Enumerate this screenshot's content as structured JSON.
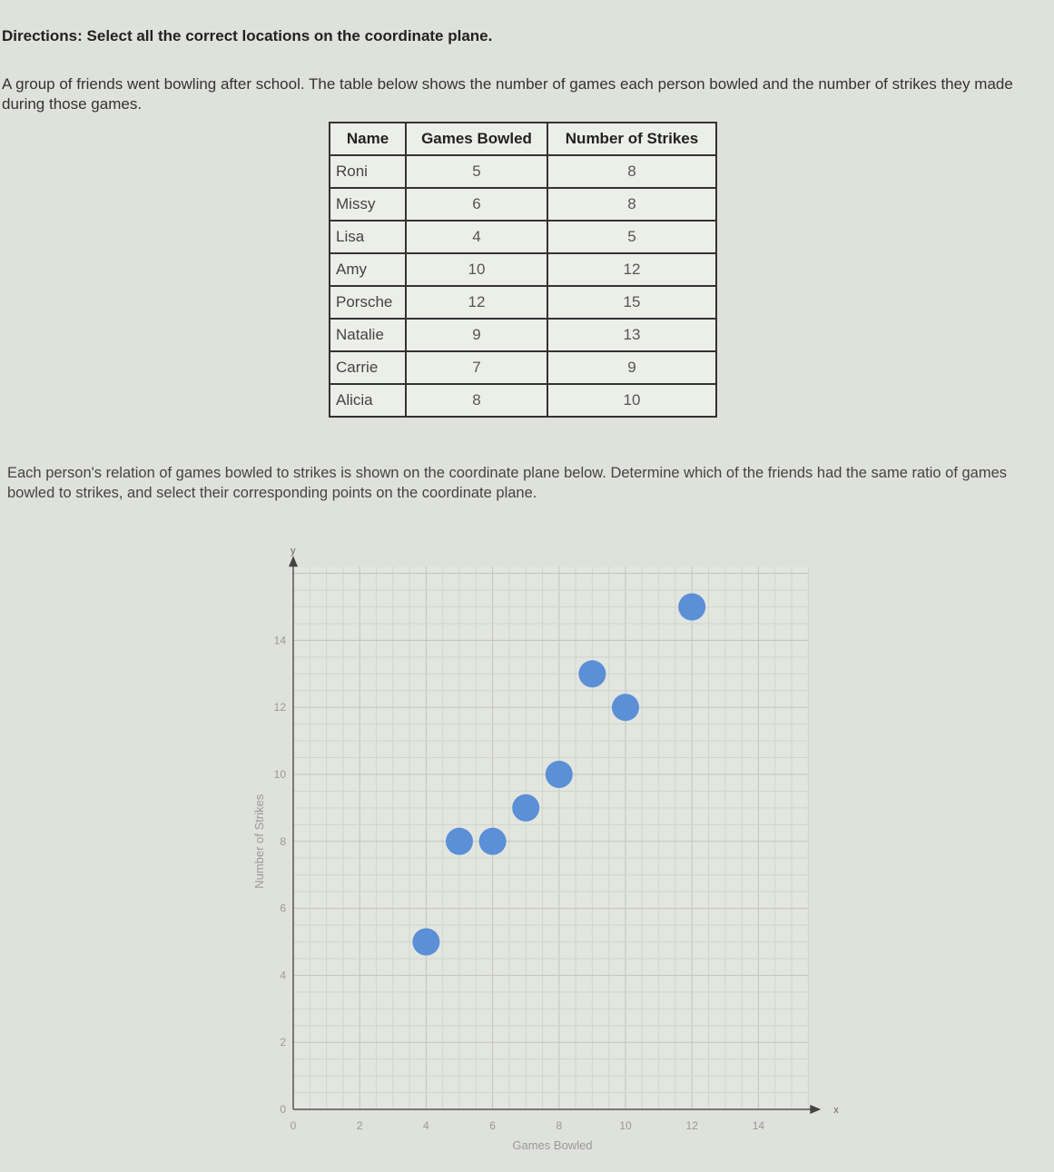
{
  "directions": {
    "label": "Directions:",
    "text": "Select all the correct locations on the coordinate plane."
  },
  "intro": "A group of friends went bowling after school. The table below shows the number of games each person bowled and the number of strikes they made during those games.",
  "table": {
    "headers": [
      "Name",
      "Games Bowled",
      "Number of Strikes"
    ],
    "rows": [
      [
        "Roni",
        "5",
        "8"
      ],
      [
        "Missy",
        "6",
        "8"
      ],
      [
        "Lisa",
        "4",
        "5"
      ],
      [
        "Amy",
        "10",
        "12"
      ],
      [
        "Porsche",
        "12",
        "15"
      ],
      [
        "Natalie",
        "9",
        "13"
      ],
      [
        "Carrie",
        "7",
        "9"
      ],
      [
        "Alicia",
        "8",
        "10"
      ]
    ]
  },
  "question": "Each person's relation of games bowled to strikes is shown on the coordinate plane below. Determine which of the friends had the same ratio of games bowled to strikes, and select their corresponding points on the coordinate plane.",
  "chart_data": {
    "type": "scatter",
    "xlabel": "Games Bowled",
    "ylabel": "Number of Strikes",
    "x_axis_name": "x",
    "y_axis_name": "y",
    "xlim": [
      0,
      15.5
    ],
    "ylim": [
      0,
      16.2
    ],
    "x_ticks": [
      "0",
      "2",
      "4",
      "6",
      "8",
      "10",
      "12",
      "14"
    ],
    "y_ticks": [
      "0",
      "2",
      "4",
      "6",
      "8",
      "10",
      "12",
      "14"
    ],
    "grid": true,
    "point_color": "#5b8fd6",
    "points": [
      {
        "x": 5,
        "y": 8
      },
      {
        "x": 6,
        "y": 8
      },
      {
        "x": 4,
        "y": 5
      },
      {
        "x": 10,
        "y": 12
      },
      {
        "x": 12,
        "y": 15
      },
      {
        "x": 9,
        "y": 13
      },
      {
        "x": 7,
        "y": 9
      },
      {
        "x": 8,
        "y": 10
      }
    ]
  }
}
